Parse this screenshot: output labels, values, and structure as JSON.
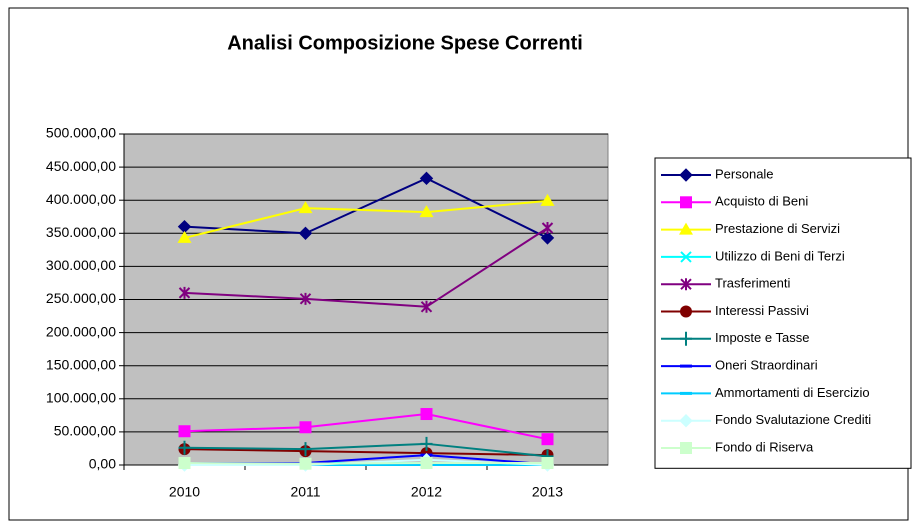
{
  "chart_data": {
    "type": "line",
    "title": "Analisi Composizione Spese Correnti",
    "categories": [
      "2010",
      "2011",
      "2012",
      "2013"
    ],
    "ylim": [
      0,
      500000
    ],
    "yticks": [
      {
        "value": 0,
        "label": "0,00"
      },
      {
        "value": 50000,
        "label": "50.000,00"
      },
      {
        "value": 100000,
        "label": "100.000,00"
      },
      {
        "value": 150000,
        "label": "150.000,00"
      },
      {
        "value": 200000,
        "label": "200.000,00"
      },
      {
        "value": 250000,
        "label": "250.000,00"
      },
      {
        "value": 300000,
        "label": "300.000,00"
      },
      {
        "value": 350000,
        "label": "350.000,00"
      },
      {
        "value": 400000,
        "label": "400.000,00"
      },
      {
        "value": 450000,
        "label": "450.000,00"
      },
      {
        "value": 500000,
        "label": "500.000,00"
      }
    ],
    "grid": true,
    "legend": "right",
    "series": [
      {
        "name": "Personale",
        "color": "#000080",
        "marker": "diamond",
        "values": [
          360000,
          350000,
          433000,
          343000
        ]
      },
      {
        "name": "Acquisto di Beni",
        "color": "#ff00ff",
        "marker": "square",
        "values": [
          51000,
          57000,
          77000,
          39000
        ]
      },
      {
        "name": "Prestazione di Servizi",
        "color": "#ffff00",
        "marker": "triangle",
        "values": [
          343000,
          388000,
          382000,
          399000
        ]
      },
      {
        "name": "Utilizzo di Beni di Terzi",
        "color": "#00ffff",
        "marker": "x",
        "values": [
          3000,
          3000,
          3000,
          3000
        ]
      },
      {
        "name": "Trasferimenti",
        "color": "#800080",
        "marker": "star",
        "values": [
          260000,
          251000,
          239000,
          358000
        ]
      },
      {
        "name": "Interessi Passivi",
        "color": "#800000",
        "marker": "circle",
        "values": [
          24000,
          21000,
          18000,
          15000
        ]
      },
      {
        "name": "Imposte e Tasse",
        "color": "#008080",
        "marker": "plus",
        "values": [
          26000,
          24000,
          32000,
          13000
        ]
      },
      {
        "name": "Oneri Straordinari",
        "color": "#0000ff",
        "marker": "dash",
        "values": [
          3000,
          3000,
          15000,
          1000
        ]
      },
      {
        "name": "Ammortamenti di Esercizio",
        "color": "#00ccff",
        "marker": "dash",
        "values": [
          0,
          0,
          0,
          0
        ]
      },
      {
        "name": "Fondo Svalutazione Crediti",
        "color": "#ccffff",
        "marker": "diamond",
        "values": [
          0,
          0,
          8000,
          0
        ]
      },
      {
        "name": "Fondo di Riserva",
        "color": "#ccffcc",
        "marker": "square",
        "values": [
          3000,
          2000,
          3000,
          3000
        ]
      }
    ]
  }
}
